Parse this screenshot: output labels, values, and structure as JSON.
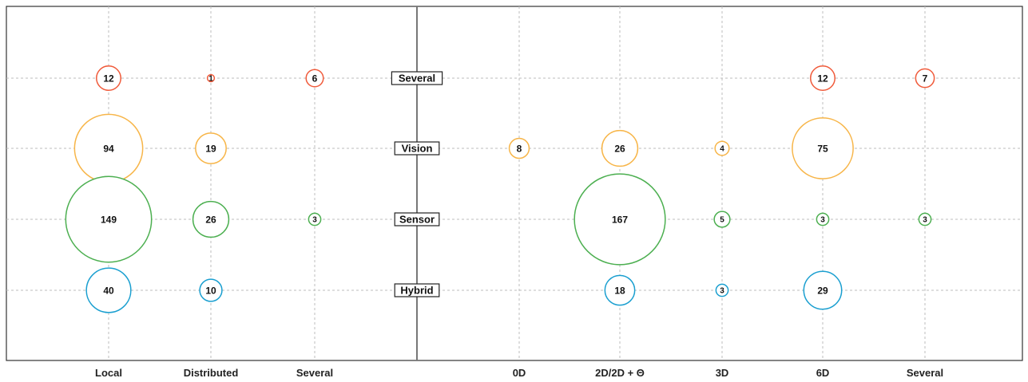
{
  "chart_data": {
    "type": "bubble",
    "rows": [
      "Several",
      "Vision",
      "Sensor",
      "Hybrid"
    ],
    "left_panel": {
      "categories": [
        "Local",
        "Distributed",
        "Several"
      ],
      "points": [
        {
          "row": "Several",
          "col": "Local",
          "value": 12
        },
        {
          "row": "Several",
          "col": "Distributed",
          "value": 1
        },
        {
          "row": "Several",
          "col": "Several",
          "value": 6
        },
        {
          "row": "Vision",
          "col": "Local",
          "value": 94
        },
        {
          "row": "Vision",
          "col": "Distributed",
          "value": 19
        },
        {
          "row": "Sensor",
          "col": "Local",
          "value": 149
        },
        {
          "row": "Sensor",
          "col": "Distributed",
          "value": 26
        },
        {
          "row": "Sensor",
          "col": "Several",
          "value": 3
        },
        {
          "row": "Hybrid",
          "col": "Local",
          "value": 40
        },
        {
          "row": "Hybrid",
          "col": "Distributed",
          "value": 10
        }
      ]
    },
    "right_panel": {
      "categories": [
        "0D",
        "2D/2D + Θ",
        "3D",
        "6D",
        "Several"
      ],
      "points": [
        {
          "row": "Several",
          "col": "6D",
          "value": 12
        },
        {
          "row": "Several",
          "col": "Several",
          "value": 7
        },
        {
          "row": "Vision",
          "col": "0D",
          "value": 8
        },
        {
          "row": "Vision",
          "col": "2D/2D + Θ",
          "value": 26
        },
        {
          "row": "Vision",
          "col": "3D",
          "value": 4
        },
        {
          "row": "Vision",
          "col": "6D",
          "value": 75
        },
        {
          "row": "Sensor",
          "col": "2D/2D + Θ",
          "value": 167
        },
        {
          "row": "Sensor",
          "col": "3D",
          "value": 5
        },
        {
          "row": "Sensor",
          "col": "6D",
          "value": 3
        },
        {
          "row": "Sensor",
          "col": "Several",
          "value": 3
        },
        {
          "row": "Hybrid",
          "col": "2D/2D + Θ",
          "value": 18
        },
        {
          "row": "Hybrid",
          "col": "3D",
          "value": 3
        },
        {
          "row": "Hybrid",
          "col": "6D",
          "value": 29
        }
      ]
    },
    "row_colors": {
      "Several": "#f05a3a",
      "Vision": "#f7b548",
      "Sensor": "#4caf50",
      "Hybrid": "#1a9fd0"
    },
    "grid": true
  }
}
